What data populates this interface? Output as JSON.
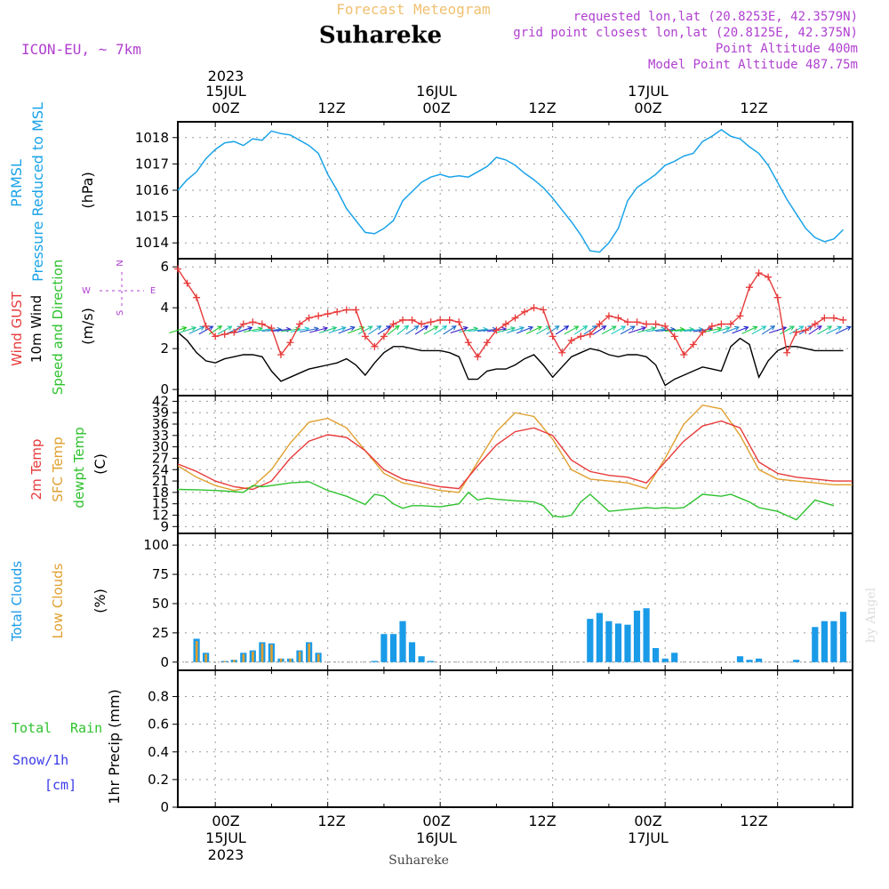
{
  "header": {
    "product": "Forecast Meteogram",
    "location": "Suhareke",
    "model": "ICON-EU, ~ 7km",
    "requested": "requested lon,lat (20.8253E, 42.3579N)",
    "gridpoint": "grid point closest lon,lat (20.8125E, 42.375N)",
    "point_alt": "Point Altitude 400m",
    "model_alt": "Model Point Altitude 487.75m",
    "footer": "Suhareke",
    "watermark": "by Angel"
  },
  "colors": {
    "pressure": "#1aa3e8",
    "gust": "#e83a3a",
    "wind": "#000000",
    "direction": "#2ec22e",
    "temp2m": "#e83a3a",
    "sfc": "#e0a030",
    "dewpt": "#2ec22e",
    "total_clouds": "#1a9be8",
    "low_clouds": "#e0a030",
    "rain": "#2ec22e",
    "snow": "#3a3ae8",
    "header_gold": "#f0c070",
    "header_purple": "#b040d0"
  },
  "time_axis": {
    "top_year": "2023",
    "top_day_labels": [
      "15JUL",
      "16JUL",
      "17JUL"
    ],
    "hour_labels": [
      "00Z",
      "12Z",
      "00Z",
      "12Z",
      "00Z",
      "12Z"
    ],
    "bottom_day_labels": [
      "15JUL",
      "16JUL",
      "17JUL"
    ],
    "bottom_year": "2023"
  },
  "labels": {
    "p1_name1": "PRMSL",
    "p1_name2": "Pressure Reduced to MSL",
    "p1_unit": "(hPa)",
    "p2_gust": "Wind GUST",
    "p2_wind": "10m Wind",
    "p2_dir": "Speed and Direction",
    "p2_unit": "(m/s)",
    "compass_n": "N",
    "compass_w": "W",
    "compass_e": "E",
    "compass_s": "S",
    "p3_t2m": "2m Temp",
    "p3_sfc": "SFC Temp",
    "p3_dew": "dewpt Temp",
    "p3_unit": "(C)",
    "p4_total": "Total Clouds",
    "p4_low": "Low Clouds",
    "p4_unit": "(%)",
    "p5_total": "Total",
    "p5_rain": "Rain",
    "p5_snow": "Snow/1h",
    "p5_cm": "[cm]",
    "p5_unit": "1hr Precip (mm)"
  },
  "chart_data": [
    {
      "type": "line",
      "name": "pressure",
      "ylim": [
        1013.4,
        1018.6
      ],
      "yticks": [
        1014,
        1015,
        1016,
        1017,
        1018
      ],
      "xlim": [
        -4,
        68
      ],
      "x": [
        -4,
        -3,
        -2,
        -1,
        0,
        1,
        2,
        3,
        4,
        5,
        6,
        7,
        8,
        9,
        10,
        11,
        12,
        13,
        14,
        15,
        16,
        17,
        18,
        19,
        20,
        21,
        22,
        23,
        24,
        25,
        26,
        27,
        28,
        29,
        30,
        31,
        32,
        33,
        34,
        35,
        36,
        37,
        38,
        39,
        40,
        41,
        42,
        43,
        44,
        45,
        46,
        47,
        48,
        49,
        50,
        51,
        52,
        53,
        54,
        55,
        56,
        57,
        58,
        59,
        60,
        61,
        62,
        63,
        64,
        65,
        66,
        67
      ],
      "values": [
        1016.0,
        1016.4,
        1016.7,
        1017.2,
        1017.55,
        1017.8,
        1017.85,
        1017.7,
        1017.95,
        1017.9,
        1018.25,
        1018.15,
        1018.1,
        1017.9,
        1017.7,
        1017.4,
        1016.6,
        1016.0,
        1015.3,
        1014.85,
        1014.4,
        1014.35,
        1014.55,
        1014.85,
        1015.6,
        1015.95,
        1016.3,
        1016.5,
        1016.6,
        1016.5,
        1016.55,
        1016.5,
        1016.7,
        1016.9,
        1017.25,
        1017.15,
        1016.95,
        1016.65,
        1016.4,
        1016.1,
        1015.7,
        1015.25,
        1014.8,
        1014.3,
        1013.7,
        1013.65,
        1014.0,
        1014.55,
        1015.6,
        1016.1,
        1016.35,
        1016.6,
        1016.95,
        1017.1,
        1017.3,
        1017.4,
        1017.85,
        1018.05,
        1018.3,
        1018.05,
        1017.95,
        1017.65,
        1017.4,
        1016.95,
        1016.3,
        1015.65,
        1015.1,
        1014.55,
        1014.2,
        1014.05,
        1014.15,
        1014.5
      ]
    },
    {
      "type": "line",
      "name": "wind",
      "ylim": [
        -0.3,
        6.4
      ],
      "yticks": [
        0,
        2,
        4,
        6
      ],
      "xlim": [
        -4,
        68
      ],
      "gust_x": [
        -4,
        -3,
        -2,
        -1,
        0,
        1,
        2,
        3,
        4,
        5,
        6,
        7,
        8,
        9,
        10,
        11,
        12,
        13,
        14,
        15,
        16,
        17,
        18,
        19,
        20,
        21,
        22,
        23,
        24,
        25,
        26,
        27,
        28,
        29,
        30,
        31,
        32,
        33,
        34,
        35,
        36,
        37,
        38,
        39,
        40,
        41,
        42,
        43,
        44,
        45,
        46,
        47,
        48,
        49,
        50,
        51,
        52,
        53,
        54,
        55,
        56,
        57,
        58,
        59,
        60,
        61,
        62,
        63,
        64,
        65,
        66,
        67
      ],
      "gust": [
        5.9,
        5.2,
        4.5,
        3.1,
        2.6,
        2.7,
        2.8,
        3.2,
        3.3,
        3.2,
        3.0,
        1.7,
        2.3,
        3.2,
        3.5,
        3.6,
        3.7,
        3.8,
        3.9,
        3.9,
        2.6,
        2.1,
        2.6,
        3.2,
        3.4,
        3.4,
        3.2,
        3.3,
        3.4,
        3.4,
        3.3,
        2.3,
        1.6,
        2.3,
        2.9,
        3.2,
        3.5,
        3.8,
        4.0,
        3.9,
        2.6,
        1.8,
        2.4,
        2.6,
        2.7,
        3.2,
        3.6,
        3.5,
        3.3,
        3.3,
        3.2,
        3.2,
        3.1,
        2.6,
        1.7,
        2.2,
        2.8,
        3.1,
        3.2,
        3.2,
        3.6,
        5.0,
        5.7,
        5.5,
        4.5,
        1.8,
        2.8,
        2.9,
        3.2,
        3.5,
        3.5,
        3.4
      ],
      "speed_x": [
        -4,
        -3,
        -2,
        -1,
        0,
        1,
        2,
        3,
        4,
        5,
        6,
        7,
        8,
        9,
        10,
        11,
        12,
        13,
        14,
        15,
        16,
        17,
        18,
        19,
        20,
        21,
        22,
        23,
        24,
        25,
        26,
        27,
        28,
        29,
        30,
        31,
        32,
        33,
        34,
        35,
        36,
        37,
        38,
        39,
        40,
        41,
        42,
        43,
        44,
        45,
        46,
        47,
        48,
        49,
        50,
        51,
        52,
        53,
        54,
        55,
        56,
        57,
        58,
        59,
        60,
        61,
        62,
        63,
        64,
        65,
        66,
        67
      ],
      "speed": [
        2.8,
        2.4,
        1.8,
        1.4,
        1.3,
        1.5,
        1.6,
        1.7,
        1.7,
        1.6,
        0.9,
        0.4,
        0.6,
        0.8,
        1.0,
        1.1,
        1.2,
        1.3,
        1.5,
        1.2,
        0.7,
        1.3,
        1.8,
        2.1,
        2.1,
        2.0,
        1.9,
        1.9,
        1.9,
        1.8,
        1.6,
        0.5,
        0.5,
        0.9,
        1.0,
        1.0,
        1.2,
        1.5,
        1.7,
        1.2,
        0.6,
        1.1,
        1.6,
        1.8,
        2.0,
        1.9,
        1.7,
        1.6,
        1.7,
        1.7,
        1.6,
        1.2,
        0.2,
        0.5,
        0.7,
        0.9,
        1.1,
        1.0,
        0.9,
        2.1,
        2.5,
        2.2,
        0.6,
        1.4,
        1.9,
        2.1,
        2.1,
        2.0,
        1.9,
        1.9,
        1.9,
        1.9
      ],
      "dir_x": [
        -4,
        -3,
        -2,
        -1,
        0,
        1,
        2,
        3,
        4,
        5,
        6,
        7,
        8,
        9,
        10,
        11,
        12,
        13,
        14,
        15,
        16,
        17,
        18,
        19,
        20,
        21,
        22,
        23,
        24,
        25,
        26,
        27,
        28,
        29,
        30,
        31,
        32,
        33,
        34,
        35,
        36,
        37,
        38,
        39,
        40,
        41,
        42,
        43,
        44,
        45,
        46,
        47,
        48,
        49,
        50,
        51,
        52,
        53,
        54,
        55,
        56,
        57,
        58,
        59,
        60,
        61,
        62,
        63,
        64,
        65,
        66,
        67
      ],
      "dir_to_deg": [
        60,
        60,
        50,
        45,
        40,
        45,
        50,
        60,
        70,
        75,
        80,
        80,
        75,
        70,
        70,
        65,
        60,
        60,
        55,
        55,
        45,
        40,
        40,
        35,
        35,
        40,
        40,
        45,
        40,
        40,
        60,
        70,
        80,
        80,
        75,
        65,
        60,
        55,
        50,
        45,
        40,
        40,
        45,
        40,
        40,
        40,
        45,
        45,
        45,
        60,
        65,
        75,
        80,
        80,
        80,
        80,
        75,
        70,
        60,
        55,
        55,
        50,
        45,
        40,
        60,
        45,
        45,
        40,
        40,
        45,
        50,
        50
      ]
    },
    {
      "type": "line",
      "name": "temperature",
      "ylim": [
        7.2,
        43.5
      ],
      "yticks": [
        9,
        12,
        15,
        18,
        21,
        24,
        27,
        30,
        33,
        36,
        39,
        42
      ],
      "xlim": [
        -4,
        68
      ],
      "x": [
        -4,
        -2,
        0,
        2,
        4,
        6,
        8,
        10,
        12,
        14,
        16,
        18,
        20,
        22,
        24,
        26,
        28,
        30,
        32,
        34,
        36,
        38,
        40,
        42,
        44,
        46,
        48,
        50,
        52,
        54,
        56,
        58,
        60,
        62,
        64,
        66,
        68
      ],
      "t2m": [
        25.5,
        23.5,
        21.0,
        19.5,
        18.8,
        21.0,
        27.0,
        31.5,
        33.2,
        32.5,
        29.0,
        24.0,
        21.5,
        20.5,
        19.5,
        19.0,
        25.0,
        30.5,
        34.0,
        35.0,
        33.0,
        26.5,
        23.5,
        22.5,
        22.0,
        20.5,
        26.0,
        31.5,
        35.5,
        36.8,
        35.0,
        26.0,
        23.0,
        22.0,
        21.5,
        21.0,
        21.0
      ],
      "sfc": [
        25.0,
        22.0,
        19.8,
        18.5,
        19.5,
        24.0,
        31.0,
        36.5,
        37.5,
        35.0,
        29.0,
        23.0,
        20.5,
        19.5,
        18.5,
        18.0,
        26.0,
        34.0,
        39.0,
        38.0,
        32.0,
        24.0,
        21.5,
        21.0,
        20.5,
        19.0,
        27.0,
        36.0,
        41.0,
        40.0,
        33.0,
        24.0,
        21.5,
        21.0,
        20.5,
        20.0,
        20.0
      ],
      "dewpt_x": [
        -4,
        -2,
        0,
        2,
        3,
        4,
        5,
        6,
        8,
        10,
        12,
        14,
        16,
        17,
        18,
        19,
        20,
        21,
        22,
        24,
        26,
        27,
        28,
        29,
        30,
        32,
        34,
        35,
        36,
        37,
        38,
        39,
        40,
        42,
        44,
        46,
        47,
        48,
        49,
        50,
        52,
        54,
        55,
        56,
        57,
        58,
        59,
        60,
        62,
        64,
        66
      ],
      "dewpt": [
        18.8,
        18.7,
        18.5,
        18.2,
        18.0,
        19.8,
        19.5,
        19.8,
        20.5,
        20.8,
        18.5,
        17.0,
        14.8,
        17.5,
        17.0,
        15.0,
        13.8,
        14.5,
        14.5,
        14.2,
        15.0,
        18.0,
        16.0,
        16.5,
        16.2,
        15.8,
        15.5,
        14.5,
        11.8,
        11.5,
        12.0,
        15.5,
        17.5,
        13.0,
        13.5,
        14.0,
        13.8,
        14.0,
        13.8,
        14.0,
        17.5,
        17.0,
        17.5,
        16.5,
        15.5,
        14.0,
        13.5,
        13.0,
        10.8,
        16.0,
        14.5
      ]
    },
    {
      "type": "bar",
      "name": "clouds",
      "ylim": [
        -7,
        110
      ],
      "yticks": [
        0,
        25,
        50,
        75,
        100
      ],
      "xlim": [
        -4,
        68
      ],
      "x": [
        -4,
        -3,
        -2,
        -1,
        0,
        1,
        2,
        3,
        4,
        5,
        6,
        7,
        8,
        9,
        10,
        11,
        12,
        13,
        14,
        15,
        16,
        17,
        18,
        19,
        20,
        21,
        22,
        23,
        24,
        25,
        26,
        27,
        28,
        29,
        30,
        31,
        32,
        33,
        34,
        35,
        36,
        37,
        38,
        39,
        40,
        41,
        42,
        43,
        44,
        45,
        46,
        47,
        48,
        49,
        50,
        51,
        52,
        53,
        54,
        55,
        56,
        57,
        58,
        59,
        60,
        61,
        62,
        63,
        64,
        65,
        66,
        67
      ],
      "total": [
        0,
        0,
        20,
        8,
        0,
        1,
        2,
        8,
        10,
        17,
        16,
        3,
        3,
        10,
        17,
        8,
        0,
        0,
        0,
        0,
        0,
        1,
        24,
        24,
        35,
        17,
        5,
        1,
        0,
        0,
        0,
        0,
        0,
        0,
        0,
        0,
        0,
        0,
        0,
        0,
        0,
        0,
        0,
        0,
        37,
        42,
        35,
        33,
        32,
        44,
        46,
        12,
        3,
        8,
        0,
        0,
        0,
        0,
        0,
        0,
        5,
        2,
        3,
        0,
        0,
        0,
        2,
        0,
        30,
        35,
        35,
        43
      ],
      "low": [
        0,
        0,
        18,
        7,
        0,
        1,
        2,
        7,
        9,
        16,
        15,
        3,
        3,
        9,
        16,
        7,
        0,
        0,
        0,
        0,
        0,
        0,
        0,
        0,
        0,
        0,
        0,
        0,
        0,
        0,
        0,
        0,
        0,
        0,
        0,
        0,
        0,
        0,
        0,
        0,
        0,
        0,
        0,
        0,
        0,
        0,
        0,
        0,
        0,
        0,
        0,
        0,
        0,
        0,
        0,
        0,
        0,
        0,
        0,
        0,
        0,
        0,
        0,
        0,
        0,
        0,
        0,
        0,
        0,
        0,
        0,
        0
      ]
    },
    {
      "type": "bar",
      "name": "precip",
      "ylim": [
        0,
        0.99
      ],
      "yticks": [
        0,
        0.2,
        0.4,
        0.6,
        0.8
      ],
      "xlim": [
        -4,
        68
      ],
      "rain": [],
      "snow": []
    }
  ]
}
